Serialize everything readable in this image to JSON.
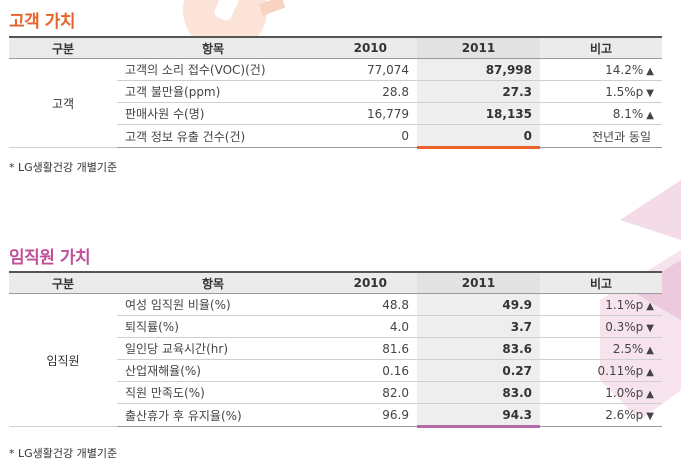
{
  "colors": {
    "accent1": "#e8622a",
    "accent2": "#c0509a",
    "header_bg": "#ebebeb",
    "highlight_bg": "#eeeeee"
  },
  "section1": {
    "title": "고객 가치",
    "headers": {
      "category": "구분",
      "item": "항목",
      "y2010": "2010",
      "y2011": "2011",
      "note": "비고"
    },
    "category": "고객",
    "rows": [
      {
        "item": "고객의 소리 접수(VOC)(건)",
        "v2010": "77,074",
        "v2011": "87,998",
        "note": "14.2%",
        "arrow": "▲"
      },
      {
        "item": "고객 불만율(ppm)",
        "v2010": "28.8",
        "v2011": "27.3",
        "note": "1.5%p",
        "arrow": "▼"
      },
      {
        "item": "판매사원 수(명)",
        "v2010": "16,779",
        "v2011": "18,135",
        "note": "8.1%",
        "arrow": "▲"
      },
      {
        "item": "고객 정보 유출 건수(건)",
        "v2010": "0",
        "v2011": "0",
        "note": "전년과 동일",
        "arrow": ""
      }
    ],
    "footnote": "* LG생활건강 개별기준"
  },
  "section2": {
    "title": "임직원 가치",
    "headers": {
      "category": "구분",
      "item": "항목",
      "y2010": "2010",
      "y2011": "2011",
      "note": "비고"
    },
    "category": "임직원",
    "rows": [
      {
        "item": "여성 임직원 비율(%)",
        "v2010": "48.8",
        "v2011": "49.9",
        "note": "1.1%p",
        "arrow": "▲"
      },
      {
        "item": "퇴직률(%)",
        "v2010": "4.0",
        "v2011": "3.7",
        "note": "0.3%p",
        "arrow": "▼"
      },
      {
        "item": "일인당 교육시간(hr)",
        "v2010": "81.6",
        "v2011": "83.6",
        "note": "2.5%",
        "arrow": "▲"
      },
      {
        "item": "산업재해율(%)",
        "v2010": "0.16",
        "v2011": "0.27",
        "note": "0.11%p",
        "arrow": "▲"
      },
      {
        "item": "직원 만족도(%)",
        "v2010": "82.0",
        "v2011": "83.0",
        "note": "1.0%p",
        "arrow": "▲"
      },
      {
        "item": "출산휴가 후 유지율(%)",
        "v2010": "96.9",
        "v2011": "94.3",
        "note": "2.6%p",
        "arrow": "▼"
      }
    ],
    "footnote": "* LG생활건강 개별기준"
  }
}
